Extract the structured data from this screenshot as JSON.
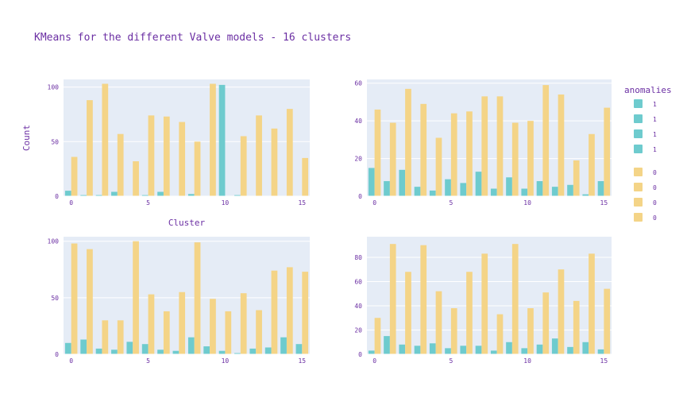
{
  "title": "KMeans for the different Valve models - 16 clusters",
  "colors": {
    "anomaly": "#6ecbce",
    "normal": "#f4d487",
    "plot_bg": "#e5ecf6",
    "grid": "#ffffff",
    "text": "#6b2fa3"
  },
  "legend": {
    "title": "anomalies",
    "items": [
      {
        "label": "1",
        "color": "#6ecbce"
      },
      {
        "label": "1",
        "color": "#6ecbce"
      },
      {
        "label": "1",
        "color": "#6ecbce"
      },
      {
        "label": "1",
        "color": "#6ecbce"
      },
      {
        "label": "0",
        "color": "#f4d487"
      },
      {
        "label": "0",
        "color": "#f4d487"
      },
      {
        "label": "0",
        "color": "#f4d487"
      },
      {
        "label": "0",
        "color": "#f4d487"
      }
    ]
  },
  "chart_data": [
    {
      "type": "bar",
      "xlabel": "Cluster",
      "ylabel": "Count",
      "x": [
        0,
        1,
        2,
        3,
        4,
        5,
        6,
        7,
        8,
        9,
        10,
        11,
        12,
        13,
        14,
        15
      ],
      "xlim": [
        -0.5,
        15.5
      ],
      "ylim": [
        0,
        107
      ],
      "xticks": [
        0,
        5,
        10,
        15
      ],
      "yticks": [
        0,
        50,
        100
      ],
      "series": [
        {
          "name": "1",
          "values": [
            5,
            1,
            1,
            4,
            0,
            1,
            4,
            0,
            2,
            0,
            102,
            1,
            0,
            0,
            0,
            0
          ]
        },
        {
          "name": "0",
          "values": [
            36,
            88,
            103,
            57,
            32,
            74,
            73,
            68,
            50,
            103,
            0,
            55,
            74,
            62,
            80,
            35
          ]
        }
      ]
    },
    {
      "type": "bar",
      "xlabel": "",
      "ylabel": "",
      "x": [
        0,
        1,
        2,
        3,
        4,
        5,
        6,
        7,
        8,
        9,
        10,
        11,
        12,
        13,
        14,
        15
      ],
      "xlim": [
        -0.5,
        15.5
      ],
      "ylim": [
        0,
        62
      ],
      "xticks": [
        0,
        5,
        10,
        15
      ],
      "yticks": [
        0,
        20,
        40,
        60
      ],
      "series": [
        {
          "name": "1",
          "values": [
            15,
            8,
            14,
            5,
            3,
            9,
            7,
            13,
            4,
            10,
            4,
            8,
            5,
            6,
            1,
            8
          ]
        },
        {
          "name": "0",
          "values": [
            46,
            39,
            57,
            49,
            31,
            44,
            45,
            53,
            53,
            39,
            40,
            59,
            54,
            19,
            33,
            47
          ]
        }
      ]
    },
    {
      "type": "bar",
      "xlabel": "",
      "ylabel": "",
      "x": [
        0,
        1,
        2,
        3,
        4,
        5,
        6,
        7,
        8,
        9,
        10,
        11,
        12,
        13,
        14,
        15
      ],
      "xlim": [
        -0.5,
        15.5
      ],
      "ylim": [
        0,
        104
      ],
      "xticks": [
        0,
        5,
        10,
        15
      ],
      "yticks": [
        0,
        50,
        100
      ],
      "series": [
        {
          "name": "1",
          "values": [
            10,
            13,
            5,
            4,
            11,
            9,
            4,
            3,
            15,
            7,
            3,
            1,
            5,
            6,
            15,
            9
          ]
        },
        {
          "name": "0",
          "values": [
            98,
            93,
            30,
            30,
            100,
            53,
            38,
            55,
            99,
            49,
            38,
            54,
            39,
            74,
            77,
            73
          ]
        }
      ]
    },
    {
      "type": "bar",
      "xlabel": "",
      "ylabel": "",
      "x": [
        0,
        1,
        2,
        3,
        4,
        5,
        6,
        7,
        8,
        9,
        10,
        11,
        12,
        13,
        14,
        15
      ],
      "xlim": [
        -0.5,
        15.5
      ],
      "ylim": [
        0,
        97
      ],
      "xticks": [
        0,
        5,
        10,
        15
      ],
      "yticks": [
        0,
        20,
        40,
        60,
        80
      ],
      "series": [
        {
          "name": "1",
          "values": [
            3,
            15,
            8,
            7,
            9,
            5,
            7,
            7,
            3,
            10,
            5,
            8,
            13,
            6,
            10,
            4
          ]
        },
        {
          "name": "0",
          "values": [
            30,
            91,
            68,
            90,
            52,
            38,
            68,
            83,
            33,
            91,
            38,
            51,
            70,
            44,
            83,
            54
          ]
        }
      ]
    }
  ]
}
